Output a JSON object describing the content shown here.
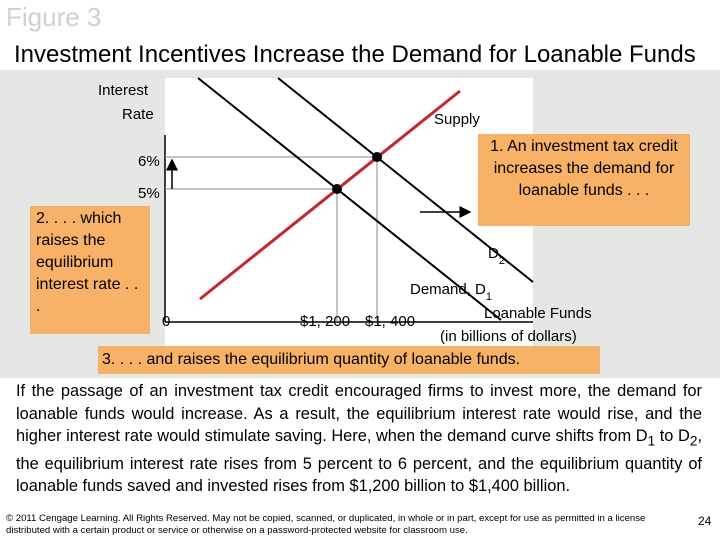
{
  "header": {
    "figure": "Figure 3",
    "title": "Investment Incentives Increase the Demand for Loanable Funds"
  },
  "diagram": {
    "y_axis_label": [
      "Interest",
      "Rate"
    ],
    "supply_label": "Supply",
    "rate_labels": [
      "6%",
      "5%"
    ],
    "origin_label": "0",
    "quantity_labels": [
      "$1, 200",
      "$1, 400"
    ],
    "x_axis_label": [
      "Loanable Funds",
      "(in billions of dollars)"
    ],
    "demand2_label": {
      "text": "D",
      "sub": "2"
    },
    "demand1_label": {
      "text": "Demand, D",
      "sub": "1"
    }
  },
  "callouts": [
    "1. An investment tax credit increases the demand for loanable funds . . .",
    "2. . . . which raises the equilibrium interest rate . . .",
    "3. . . . and raises the equilibrium quantity of loanable funds."
  ],
  "body": [
    {
      "text": "If the passage of an investment tax credit encouraged firms to invest more, the demand for loanable funds would increase. As a result, the equilibrium interest rate would rise, and the higher interest rate would stimulate saving. Here, when the demand curve shifts from D"
    },
    {
      "sub": "1"
    },
    {
      "text": " to D"
    },
    {
      "sub": "2"
    },
    {
      "text": ", the equilibrium interest rate rises from 5 percent to 6 percent, and the equilibrium quantity of loanable funds saved and invested rises from $1,200 billion to $1,400 billion."
    }
  ],
  "footer": {
    "copyright": "© 2011 Cengage Learning. All Rights Reserved. May not be copied, scanned, or duplicated, in whole or in part, except for use as permitted in a license distributed with a certain product or service or otherwise on a password-protected website for classroom use.",
    "page": "24"
  }
}
